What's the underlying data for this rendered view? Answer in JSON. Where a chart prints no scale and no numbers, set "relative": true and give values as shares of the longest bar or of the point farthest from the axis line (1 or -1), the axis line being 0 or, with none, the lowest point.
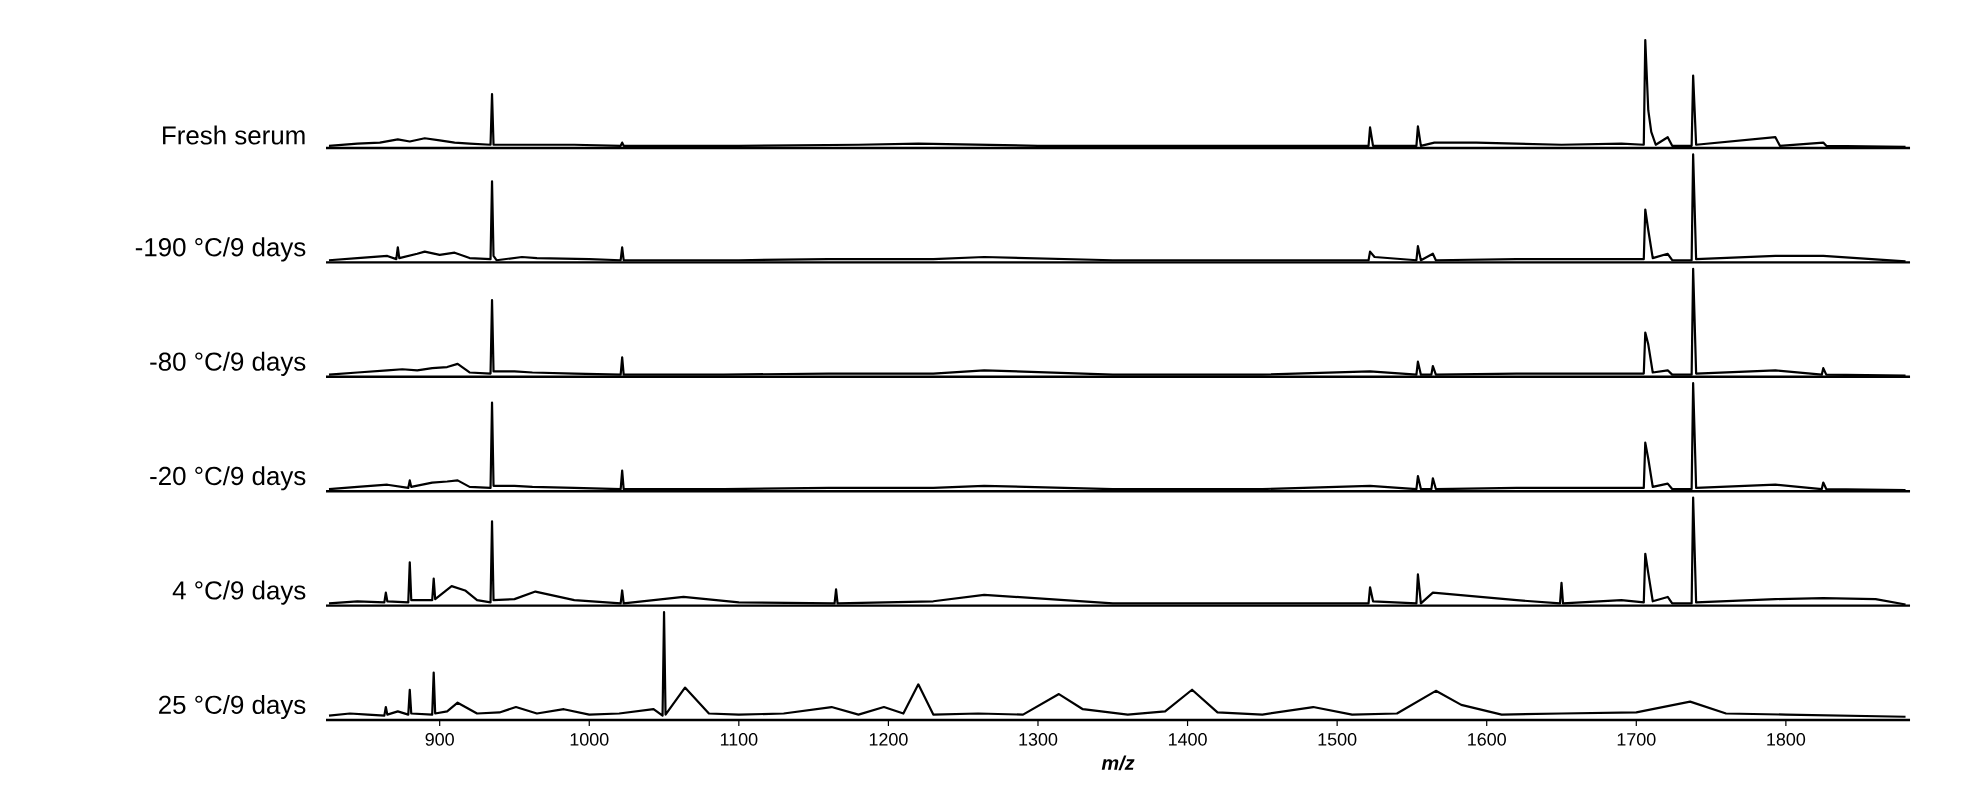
{
  "chart_data": [
    {
      "type": "line",
      "relative": true,
      "ylabel": "Fresh serum",
      "color": "#000000",
      "xlim": [
        824,
        1883
      ],
      "tick_labels": false,
      "x": [
        826,
        845,
        860,
        872,
        880,
        890,
        900,
        910,
        920,
        934,
        935,
        936,
        960,
        990,
        1021,
        1022,
        1023,
        1100,
        1180,
        1220,
        1300,
        1400,
        1480,
        1521,
        1522,
        1524,
        1553,
        1554,
        1556,
        1565,
        1593,
        1650,
        1690,
        1705,
        1706,
        1708,
        1710,
        1713,
        1721,
        1724,
        1737,
        1738,
        1740,
        1793,
        1796,
        1825,
        1827,
        1880
      ],
      "values": [
        0.02,
        0.04,
        0.05,
        0.08,
        0.06,
        0.09,
        0.07,
        0.05,
        0.04,
        0.03,
        0.5,
        0.03,
        0.03,
        0.03,
        0.02,
        0.05,
        0.02,
        0.02,
        0.03,
        0.04,
        0.02,
        0.02,
        0.02,
        0.02,
        0.19,
        0.02,
        0.02,
        0.2,
        0.02,
        0.05,
        0.05,
        0.03,
        0.04,
        0.03,
        1.0,
        0.35,
        0.15,
        0.03,
        0.1,
        0.02,
        0.02,
        0.67,
        0.03,
        0.1,
        0.02,
        0.05,
        0.02,
        0.01
      ]
    },
    {
      "type": "line",
      "relative": true,
      "ylabel": "-190 °C/9 days",
      "color": "#000000",
      "xlim": [
        824,
        1883
      ],
      "tick_labels": false,
      "x": [
        826,
        845,
        865,
        871,
        872,
        873,
        885,
        890,
        900,
        910,
        920,
        934,
        935,
        936,
        938,
        955,
        965,
        1000,
        1021,
        1022,
        1023,
        1100,
        1160,
        1230,
        1264,
        1350,
        1450,
        1521,
        1522,
        1525,
        1553,
        1554,
        1556,
        1564,
        1566,
        1620,
        1680,
        1705,
        1706,
        1708,
        1711,
        1721,
        1724,
        1737,
        1738,
        1740,
        1793,
        1825,
        1880
      ],
      "values": [
        0.02,
        0.04,
        0.06,
        0.03,
        0.14,
        0.04,
        0.08,
        0.1,
        0.07,
        0.09,
        0.04,
        0.03,
        0.75,
        0.06,
        0.02,
        0.05,
        0.04,
        0.03,
        0.02,
        0.14,
        0.02,
        0.02,
        0.03,
        0.03,
        0.05,
        0.02,
        0.02,
        0.02,
        0.1,
        0.05,
        0.02,
        0.15,
        0.02,
        0.08,
        0.02,
        0.03,
        0.03,
        0.03,
        0.49,
        0.3,
        0.04,
        0.08,
        0.02,
        0.02,
        1.0,
        0.03,
        0.06,
        0.06,
        0.01
      ]
    },
    {
      "type": "line",
      "relative": true,
      "ylabel": "-80 °C/9 days",
      "color": "#000000",
      "xlim": [
        824,
        1883
      ],
      "tick_labels": false,
      "x": [
        826,
        845,
        865,
        875,
        885,
        895,
        905,
        912,
        920,
        934,
        935,
        936,
        950,
        962,
        990,
        1021,
        1022,
        1023,
        1090,
        1160,
        1230,
        1264,
        1350,
        1450,
        1522,
        1553,
        1554,
        1556,
        1563,
        1564,
        1566,
        1620,
        1680,
        1705,
        1706,
        1708,
        1711,
        1721,
        1724,
        1737,
        1738,
        1740,
        1793,
        1824,
        1825,
        1827,
        1880
      ],
      "values": [
        0.02,
        0.04,
        0.06,
        0.07,
        0.06,
        0.08,
        0.09,
        0.12,
        0.04,
        0.03,
        0.71,
        0.05,
        0.05,
        0.04,
        0.03,
        0.02,
        0.18,
        0.02,
        0.02,
        0.03,
        0.03,
        0.06,
        0.02,
        0.02,
        0.05,
        0.02,
        0.14,
        0.02,
        0.02,
        0.1,
        0.02,
        0.03,
        0.03,
        0.03,
        0.41,
        0.3,
        0.04,
        0.06,
        0.02,
        0.02,
        1.0,
        0.03,
        0.06,
        0.02,
        0.08,
        0.02,
        0.01
      ]
    },
    {
      "type": "line",
      "relative": true,
      "ylabel": "-20 °C/9 days",
      "color": "#000000",
      "xlim": [
        824,
        1883
      ],
      "tick_labels": false,
      "x": [
        826,
        845,
        865,
        879,
        880,
        881,
        895,
        905,
        912,
        920,
        934,
        935,
        936,
        950,
        962,
        990,
        1021,
        1022,
        1023,
        1090,
        1160,
        1230,
        1264,
        1350,
        1450,
        1522,
        1553,
        1554,
        1556,
        1563,
        1564,
        1566,
        1620,
        1680,
        1705,
        1706,
        1708,
        1711,
        1721,
        1724,
        1737,
        1738,
        1740,
        1793,
        1824,
        1825,
        1827,
        1880
      ],
      "values": [
        0.02,
        0.04,
        0.06,
        0.03,
        0.1,
        0.04,
        0.08,
        0.09,
        0.1,
        0.04,
        0.03,
        0.82,
        0.05,
        0.05,
        0.04,
        0.03,
        0.02,
        0.19,
        0.02,
        0.02,
        0.03,
        0.03,
        0.05,
        0.02,
        0.02,
        0.05,
        0.02,
        0.14,
        0.02,
        0.02,
        0.12,
        0.02,
        0.03,
        0.03,
        0.03,
        0.45,
        0.3,
        0.04,
        0.07,
        0.02,
        0.02,
        1.0,
        0.03,
        0.06,
        0.02,
        0.08,
        0.02,
        0.01
      ]
    },
    {
      "type": "line",
      "relative": true,
      "ylabel": "4 °C/9 days",
      "color": "#000000",
      "xlim": [
        824,
        1883
      ],
      "tick_labels": false,
      "x": [
        826,
        845,
        863,
        864,
        865,
        879,
        880,
        881,
        895,
        896,
        897,
        908,
        917,
        925,
        934,
        935,
        936,
        950,
        964,
        990,
        1021,
        1022,
        1023,
        1063,
        1100,
        1164,
        1165,
        1166,
        1230,
        1264,
        1350,
        1450,
        1521,
        1522,
        1524,
        1553,
        1554,
        1556,
        1564,
        1620,
        1649,
        1650,
        1651,
        1690,
        1705,
        1706,
        1708,
        1711,
        1721,
        1724,
        1737,
        1738,
        1740,
        1793,
        1825,
        1860,
        1880
      ],
      "values": [
        0.02,
        0.04,
        0.03,
        0.12,
        0.04,
        0.03,
        0.4,
        0.05,
        0.05,
        0.25,
        0.06,
        0.18,
        0.14,
        0.05,
        0.03,
        0.78,
        0.05,
        0.06,
        0.13,
        0.05,
        0.02,
        0.14,
        0.02,
        0.08,
        0.03,
        0.02,
        0.15,
        0.02,
        0.04,
        0.1,
        0.02,
        0.02,
        0.02,
        0.17,
        0.04,
        0.02,
        0.29,
        0.02,
        0.12,
        0.05,
        0.02,
        0.21,
        0.02,
        0.05,
        0.03,
        0.48,
        0.3,
        0.04,
        0.08,
        0.02,
        0.02,
        1.0,
        0.03,
        0.06,
        0.07,
        0.06,
        0.01
      ]
    },
    {
      "type": "line",
      "relative": true,
      "ylabel": "25 °C/9 days",
      "xlabel": "m/z",
      "color": "#000000",
      "xlim": [
        824,
        1883
      ],
      "tick_labels": "x",
      "xticks": [
        900,
        1000,
        1100,
        1200,
        1300,
        1400,
        1500,
        1600,
        1700,
        1800
      ],
      "x": [
        826,
        840,
        852,
        863,
        864,
        865,
        872,
        879,
        880,
        881,
        895,
        896,
        897,
        905,
        912,
        925,
        940,
        951,
        965,
        983,
        1000,
        1020,
        1043,
        1049,
        1050,
        1051,
        1064,
        1080,
        1100,
        1130,
        1162,
        1180,
        1197,
        1210,
        1220,
        1230,
        1260,
        1290,
        1314,
        1330,
        1360,
        1385,
        1403,
        1420,
        1450,
        1484,
        1510,
        1540,
        1566,
        1583,
        1610,
        1650,
        1700,
        1736,
        1760,
        1800,
        1840,
        1880
      ],
      "values": [
        0.04,
        0.06,
        0.05,
        0.04,
        0.12,
        0.05,
        0.08,
        0.05,
        0.28,
        0.06,
        0.05,
        0.44,
        0.06,
        0.08,
        0.16,
        0.06,
        0.07,
        0.12,
        0.06,
        0.1,
        0.05,
        0.06,
        0.1,
        0.04,
        1.0,
        0.05,
        0.3,
        0.06,
        0.05,
        0.06,
        0.12,
        0.05,
        0.12,
        0.06,
        0.33,
        0.05,
        0.06,
        0.05,
        0.24,
        0.1,
        0.05,
        0.08,
        0.28,
        0.07,
        0.05,
        0.12,
        0.05,
        0.06,
        0.27,
        0.14,
        0.05,
        0.06,
        0.07,
        0.17,
        0.06,
        0.05,
        0.04,
        0.03
      ]
    }
  ]
}
